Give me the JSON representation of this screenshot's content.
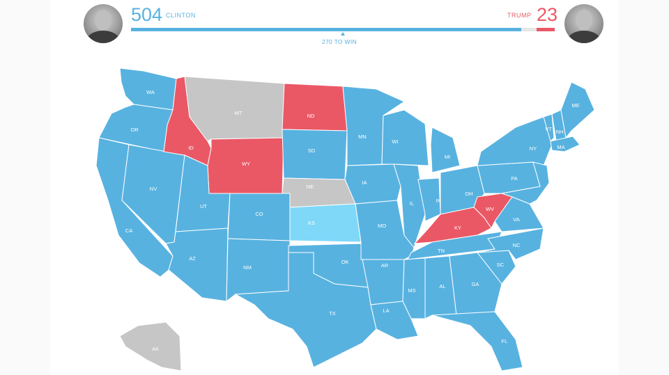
{
  "header": {
    "clinton": {
      "votes": "504",
      "name": "CLINTON"
    },
    "trump": {
      "votes": "23",
      "name": "TRUMP"
    },
    "threshold_label": "270 TO WIN"
  },
  "colors": {
    "clinton": "#58b2e0",
    "trump": "#ea5866",
    "undecided": "#c6c6c6",
    "lean_clinton": "#7fd8f8"
  },
  "states": [
    {
      "abbr": "WA",
      "winner": "clinton"
    },
    {
      "abbr": "OR",
      "winner": "clinton"
    },
    {
      "abbr": "CA",
      "winner": "clinton"
    },
    {
      "abbr": "NV",
      "winner": "clinton"
    },
    {
      "abbr": "ID",
      "winner": "trump"
    },
    {
      "abbr": "MT",
      "winner": "undecided"
    },
    {
      "abbr": "WY",
      "winner": "trump"
    },
    {
      "abbr": "UT",
      "winner": "clinton"
    },
    {
      "abbr": "AZ",
      "winner": "clinton"
    },
    {
      "abbr": "CO",
      "winner": "clinton"
    },
    {
      "abbr": "NM",
      "winner": "clinton"
    },
    {
      "abbr": "ND",
      "winner": "trump"
    },
    {
      "abbr": "SD",
      "winner": "clinton"
    },
    {
      "abbr": "NE",
      "winner": "undecided"
    },
    {
      "abbr": "KS",
      "winner": "lean_clinton"
    },
    {
      "abbr": "OK",
      "winner": "clinton"
    },
    {
      "abbr": "TX",
      "winner": "clinton"
    },
    {
      "abbr": "MN",
      "winner": "clinton"
    },
    {
      "abbr": "IA",
      "winner": "clinton"
    },
    {
      "abbr": "MO",
      "winner": "clinton"
    },
    {
      "abbr": "AR",
      "winner": "clinton"
    },
    {
      "abbr": "LA",
      "winner": "clinton"
    },
    {
      "abbr": "WI",
      "winner": "clinton"
    },
    {
      "abbr": "IL",
      "winner": "clinton"
    },
    {
      "abbr": "MS",
      "winner": "clinton"
    },
    {
      "abbr": "MI",
      "winner": "clinton"
    },
    {
      "abbr": "IN",
      "winner": "clinton"
    },
    {
      "abbr": "KY",
      "winner": "trump"
    },
    {
      "abbr": "TN",
      "winner": "clinton"
    },
    {
      "abbr": "AL",
      "winner": "clinton"
    },
    {
      "abbr": "OH",
      "winner": "clinton"
    },
    {
      "abbr": "WV",
      "winner": "trump"
    },
    {
      "abbr": "GA",
      "winner": "clinton"
    },
    {
      "abbr": "FL",
      "winner": "clinton"
    },
    {
      "abbr": "SC",
      "winner": "clinton"
    },
    {
      "abbr": "NC",
      "winner": "clinton"
    },
    {
      "abbr": "VA",
      "winner": "clinton"
    },
    {
      "abbr": "PA",
      "winner": "clinton"
    },
    {
      "abbr": "NY",
      "winner": "clinton"
    },
    {
      "abbr": "VT",
      "winner": "clinton"
    },
    {
      "abbr": "NH",
      "winner": "clinton"
    },
    {
      "abbr": "ME",
      "winner": "clinton"
    },
    {
      "abbr": "MA",
      "winner": "clinton"
    },
    {
      "abbr": "AK",
      "winner": "undecided"
    }
  ]
}
